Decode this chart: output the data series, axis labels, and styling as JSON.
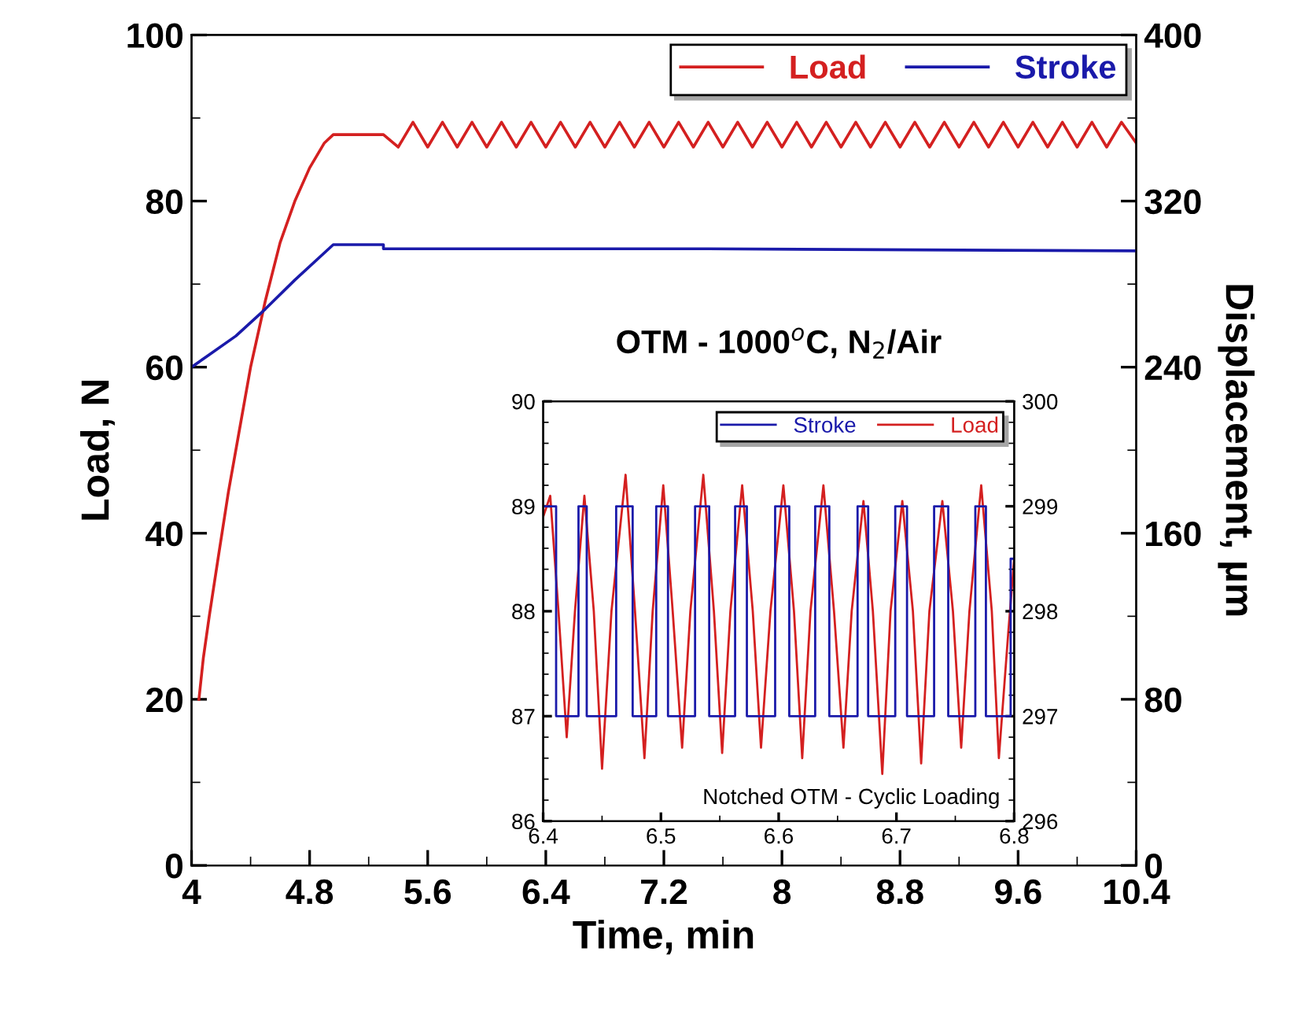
{
  "chart_data": [
    {
      "type": "line",
      "xlabel": "Time, min",
      "ylabel": "Load, N",
      "y2label": "Displacement, µm",
      "legend": "top right",
      "xlim": [
        4,
        10.4
      ],
      "xticks": [
        4,
        4.8,
        5.6,
        6.4,
        7.2,
        8,
        8.8,
        9.6,
        10.4
      ],
      "ylim": [
        0,
        100
      ],
      "yticks": [
        0,
        20,
        40,
        60,
        80,
        100
      ],
      "y2lim": [
        0,
        400
      ],
      "y2ticks": [
        0,
        80,
        160,
        240,
        320,
        400
      ],
      "series": [
        {
          "name": "Load",
          "color": "#d42020",
          "x": [
            4.05,
            4.08,
            4.12,
            4.18,
            4.25,
            4.32,
            4.4,
            4.5,
            4.6,
            4.7,
            4.8,
            4.9,
            4.96,
            5.3,
            5.4,
            5.5,
            5.6,
            5.7,
            5.8,
            5.9,
            6.0,
            6.1,
            6.2,
            6.3,
            6.4,
            6.5,
            6.6,
            6.7,
            6.8,
            6.9,
            7.0,
            7.1,
            7.2,
            7.3,
            7.4,
            7.5,
            7.6,
            7.7,
            7.8,
            7.9,
            8.0,
            8.1,
            8.2,
            8.3,
            8.4,
            8.5,
            8.6,
            8.7,
            8.8,
            8.9,
            9.0,
            9.1,
            9.2,
            9.3,
            9.4,
            9.5,
            9.6,
            9.7,
            9.8,
            9.9,
            10.0,
            10.1,
            10.2,
            10.3,
            10.4
          ],
          "values": [
            20,
            25,
            30,
            37,
            45,
            52,
            60,
            68,
            75,
            80,
            84,
            87,
            88,
            88,
            86.5,
            89.5,
            86.5,
            89.5,
            86.5,
            89.5,
            86.5,
            89.5,
            86.5,
            89.5,
            86.5,
            89.5,
            86.5,
            89.5,
            86.5,
            89.5,
            86.5,
            89.5,
            86.5,
            89.5,
            86.5,
            89.5,
            86.5,
            89.5,
            86.5,
            89.5,
            86.5,
            89.5,
            86.5,
            89.5,
            86.5,
            89.5,
            86.5,
            89.5,
            86.5,
            89.5,
            86.5,
            89.5,
            86.5,
            89.5,
            86.5,
            89.5,
            86.5,
            89.5,
            86.5,
            89.5,
            86.5,
            89.5,
            86.5,
            89.5,
            87
          ]
        },
        {
          "name": "Stroke",
          "color": "#1a1aaa",
          "axis": "y2",
          "x": [
            4,
            4.1,
            4.3,
            4.5,
            4.7,
            4.96,
            5.3,
            5.3,
            7.5,
            10.4
          ],
          "values": [
            240,
            245,
            255,
            268,
            282,
            299,
            299,
            297,
            297,
            296
          ]
        }
      ]
    },
    {
      "type": "line",
      "title": "OTM - 1000$^{o}$C, N$_{2}$/Air",
      "annotations": [
        "Notched OTM - Cyclic Loading"
      ],
      "legend": "top right",
      "xlim": [
        6.4,
        6.8
      ],
      "xticks": [
        6.4,
        6.5,
        6.6,
        6.7,
        6.8
      ],
      "ylim": [
        86,
        90
      ],
      "yticks": [
        86,
        87,
        88,
        89,
        90
      ],
      "y2lim": [
        296,
        300
      ],
      "y2ticks": [
        296,
        297,
        298,
        299,
        300
      ],
      "series": [
        {
          "name": "Stroke",
          "color": "#1a1aaa",
          "axis": "y2",
          "x": [
            6.4,
            6.411,
            6.411,
            6.43,
            6.43,
            6.437,
            6.437,
            6.462,
            6.462,
            6.476,
            6.476,
            6.496,
            6.496,
            6.506,
            6.506,
            6.529,
            6.529,
            6.541,
            6.541,
            6.563,
            6.563,
            6.573,
            6.573,
            6.597,
            6.597,
            6.609,
            6.609,
            6.631,
            6.631,
            6.643,
            6.643,
            6.667,
            6.667,
            6.676,
            6.676,
            6.699,
            6.699,
            6.709,
            6.709,
            6.732,
            6.732,
            6.744,
            6.744,
            6.767,
            6.767,
            6.776,
            6.776,
            6.797,
            6.797,
            6.8
          ],
          "values": [
            299,
            299,
            297,
            297,
            299,
            299,
            297,
            297,
            299,
            299,
            297,
            297,
            299,
            299,
            297,
            297,
            299,
            299,
            297,
            297,
            299,
            299,
            297,
            297,
            299,
            299,
            297,
            297,
            299,
            299,
            297,
            297,
            299,
            299,
            297,
            297,
            299,
            299,
            297,
            297,
            299,
            299,
            297,
            297,
            299,
            299,
            297,
            297,
            298.5,
            298.5
          ]
        },
        {
          "name": "Load",
          "color": "#d42020",
          "x": [
            6.4,
            6.406,
            6.413,
            6.42,
            6.427,
            6.435,
            6.443,
            6.45,
            6.458,
            6.47,
            6.478,
            6.486,
            6.493,
            6.502,
            6.51,
            6.518,
            6.525,
            6.536,
            6.545,
            6.552,
            6.559,
            6.569,
            6.578,
            6.585,
            6.593,
            6.604,
            6.613,
            6.62,
            6.627,
            6.638,
            6.647,
            6.655,
            6.662,
            6.672,
            6.68,
            6.688,
            6.695,
            6.705,
            6.714,
            6.721,
            6.728,
            6.739,
            6.748,
            6.755,
            6.762,
            6.772,
            6.781,
            6.787,
            6.795,
            6.8
          ],
          "values": [
            88.9,
            89.1,
            88,
            86.8,
            88,
            89.1,
            88,
            86.5,
            88,
            89.3,
            88,
            86.6,
            88,
            89.2,
            88,
            86.7,
            88,
            89.3,
            88,
            86.65,
            88,
            89.2,
            88,
            86.7,
            88,
            89.2,
            88,
            86.6,
            88,
            89.2,
            88,
            86.7,
            88,
            89.05,
            88,
            86.45,
            88,
            89.05,
            88,
            86.55,
            88,
            89.05,
            88,
            86.7,
            88,
            89.2,
            88,
            86.6,
            87.8,
            88.5
          ]
        }
      ]
    }
  ]
}
